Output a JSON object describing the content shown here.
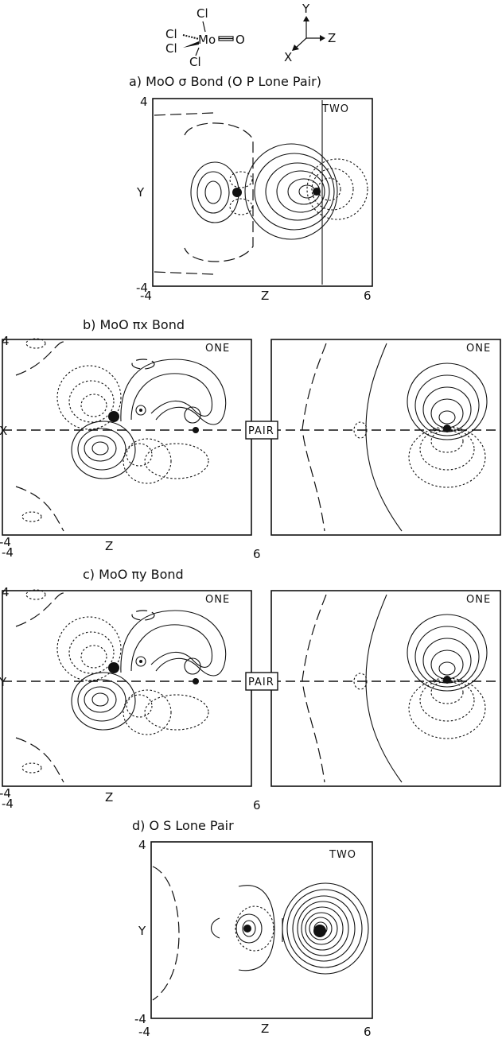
{
  "molecule": {
    "atoms": {
      "cl_top": "Cl",
      "cl_left_upper": "Cl",
      "cl_left_lower": "Cl",
      "cl_bottom": "Cl",
      "mo": "Mo",
      "o": "O"
    }
  },
  "axes_key": {
    "y": "Y",
    "z": "Z",
    "x": "X"
  },
  "panels": {
    "a": {
      "title": "a) MoO σ Bond     (O P Lone Pair)",
      "tag": "TWO",
      "ylabel": "Y",
      "xlabel": "Z",
      "y_top": "4",
      "y_bottom": "-4",
      "x_left": "-4",
      "x_right": "6"
    },
    "b": {
      "title": "b) MoO πx Bond",
      "tag_left": "ONE",
      "tag_right": "ONE",
      "pair": "PAIR",
      "ylabel": "X",
      "xlabel": "Z",
      "y_top": "4",
      "y_bottom": "-4",
      "x_left": "-4",
      "x_right": "6"
    },
    "c": {
      "title": "c) MoO πy Bond",
      "tag_left": "ONE",
      "tag_right": "ONE",
      "pair": "PAIR",
      "ylabel": "Y",
      "xlabel": "Z",
      "y_top": "4",
      "y_bottom": "-4",
      "x_left": "-4",
      "x_right": "6"
    },
    "d": {
      "title": "d) O S Lone Pair",
      "tag": "TWO",
      "ylabel": "Y",
      "xlabel": "Z",
      "y_top": "4",
      "y_bottom": "-4",
      "x_left": "-4",
      "x_right": "6"
    }
  }
}
